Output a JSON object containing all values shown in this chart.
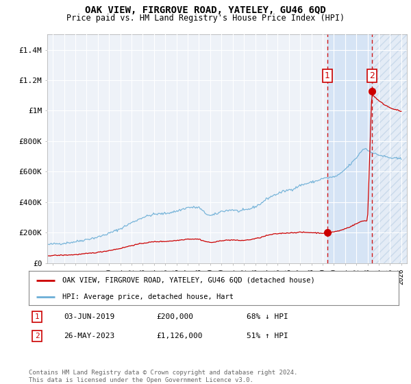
{
  "title": "OAK VIEW, FIRGROVE ROAD, YATELEY, GU46 6QD",
  "subtitle": "Price paid vs. HM Land Registry's House Price Index (HPI)",
  "ylim": [
    0,
    1500000
  ],
  "yticks": [
    0,
    200000,
    400000,
    600000,
    800000,
    1000000,
    1200000,
    1400000
  ],
  "ytick_labels": [
    "£0",
    "£200K",
    "£400K",
    "£600K",
    "£800K",
    "£1M",
    "£1.2M",
    "£1.4M"
  ],
  "background_color": "#ffffff",
  "plot_bg_color": "#eef2f8",
  "grid_color": "#ffffff",
  "hpi_color": "#6baed6",
  "price_color": "#cc0000",
  "marker1_x": 2019.42,
  "marker1_y": 200000,
  "marker2_x": 2023.38,
  "marker2_y": 1126000,
  "legend_label1": "OAK VIEW, FIRGROVE ROAD, YATELEY, GU46 6QD (detached house)",
  "legend_label2": "HPI: Average price, detached house, Hart",
  "note1_num": "1",
  "note1_date": "03-JUN-2019",
  "note1_price": "£200,000",
  "note1_pct": "68% ↓ HPI",
  "note2_num": "2",
  "note2_date": "26-MAY-2023",
  "note2_price": "£1,126,000",
  "note2_pct": "51% ↑ HPI",
  "footer": "Contains HM Land Registry data © Crown copyright and database right 2024.\nThis data is licensed under the Open Government Licence v3.0.",
  "xmin": 1994.5,
  "xmax": 2026.5,
  "shade_x1": 2019.42,
  "shade_x2": 2023.38,
  "hatch_x1": 2023.38,
  "hatch_x2": 2026.5
}
